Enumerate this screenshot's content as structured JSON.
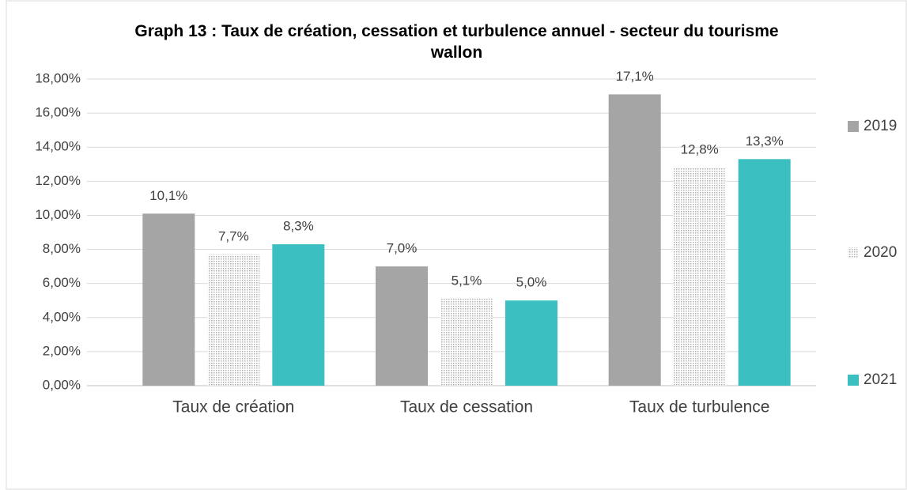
{
  "chart_data": {
    "type": "bar",
    "title": "Graph 13 : Taux de création, cessation et turbulence annuel - secteur du tourisme wallon",
    "categories": [
      "Taux de création",
      "Taux de cessation",
      "Taux de turbulence"
    ],
    "series": [
      {
        "name": "2019",
        "color": "#a5a5a5",
        "values": [
          10.1,
          7.0,
          17.1
        ],
        "value_labels": [
          "10,1%",
          "7,0%",
          "17,1%"
        ]
      },
      {
        "name": "2020",
        "color": "#b0b0b0",
        "pattern": "dots",
        "values": [
          7.7,
          5.1,
          12.8
        ],
        "value_labels": [
          "7,7%",
          "5,1%",
          "12,8%"
        ]
      },
      {
        "name": "2021",
        "color": "#3bbfc1",
        "values": [
          8.3,
          5.0,
          13.3
        ],
        "value_labels": [
          "8,3%",
          "5,0%",
          "13,3%"
        ]
      }
    ],
    "ylim": [
      0,
      18
    ],
    "yticks": [
      {
        "value": 0,
        "label": "0,00%"
      },
      {
        "value": 2,
        "label": "2,00%"
      },
      {
        "value": 4,
        "label": "4,00%"
      },
      {
        "value": 6,
        "label": "6,00%"
      },
      {
        "value": 8,
        "label": "8,00%"
      },
      {
        "value": 10,
        "label": "10,00%"
      },
      {
        "value": 12,
        "label": "12,00%"
      },
      {
        "value": 14,
        "label": "14,00%"
      },
      {
        "value": 16,
        "label": "16,00%"
      },
      {
        "value": 18,
        "label": "18,00%"
      }
    ],
    "grid": true,
    "legend": "right"
  }
}
